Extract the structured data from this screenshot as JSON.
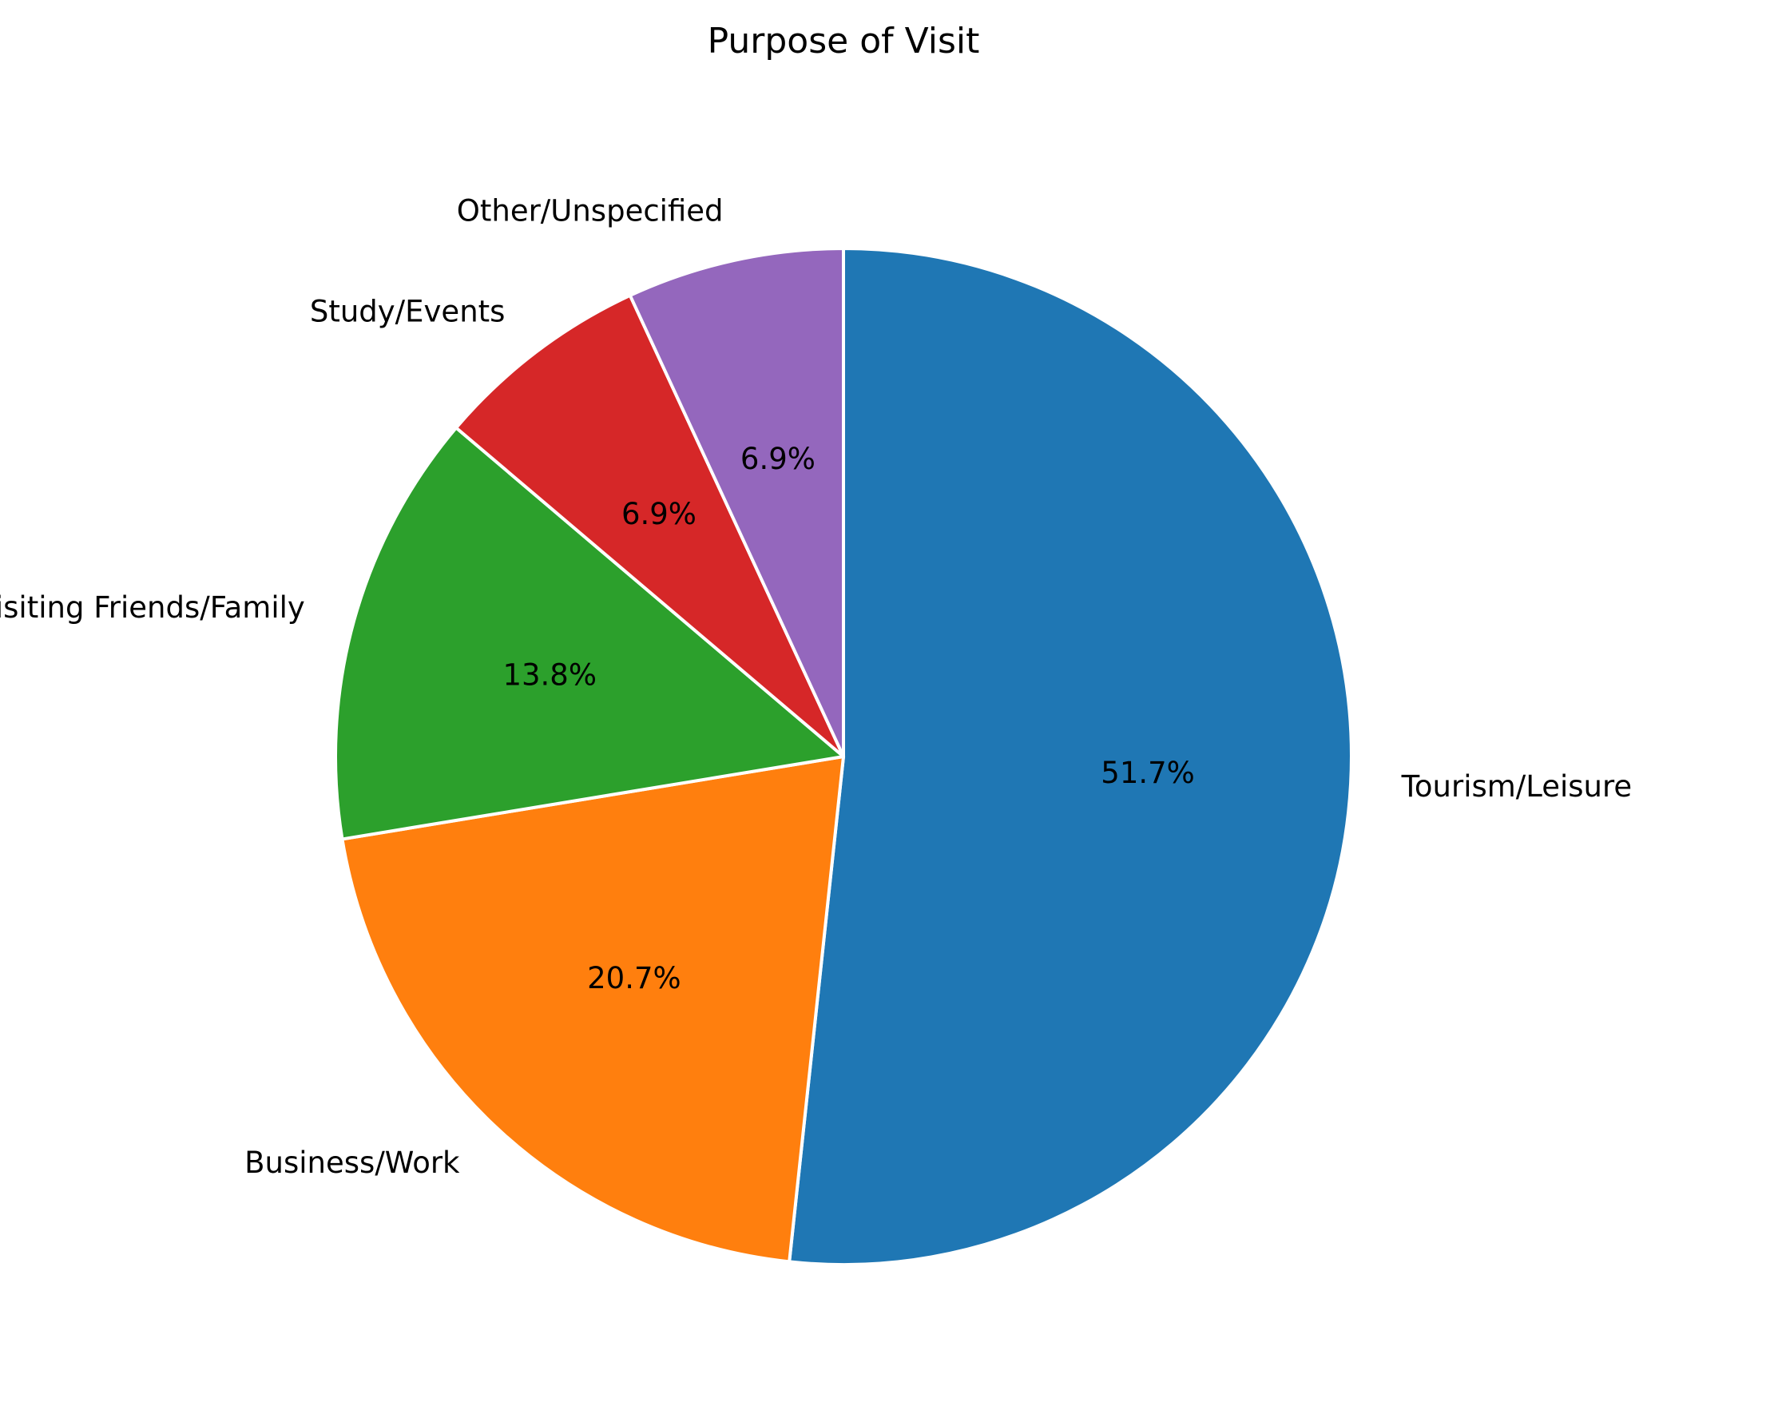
{
  "chart_data": {
    "type": "pie",
    "title": "Purpose of Visit",
    "start_angle_deg": 90,
    "direction": "clockwise",
    "slices": [
      {
        "label": "Tourism/Leisure",
        "value": 51.7,
        "pct_label": "51.7%",
        "color": "#1f77b4"
      },
      {
        "label": "Business/Work",
        "value": 20.7,
        "pct_label": "20.7%",
        "color": "#ff7f0e"
      },
      {
        "label": "Visiting Friends/Family",
        "value": 13.8,
        "pct_label": "13.8%",
        "color": "#2ca02c"
      },
      {
        "label": "Study/Events",
        "value": 6.9,
        "pct_label": "6.9%",
        "color": "#d62728"
      },
      {
        "label": "Other/Unspecified",
        "value": 6.9,
        "pct_label": "6.9%",
        "color": "#9467bd"
      }
    ]
  }
}
